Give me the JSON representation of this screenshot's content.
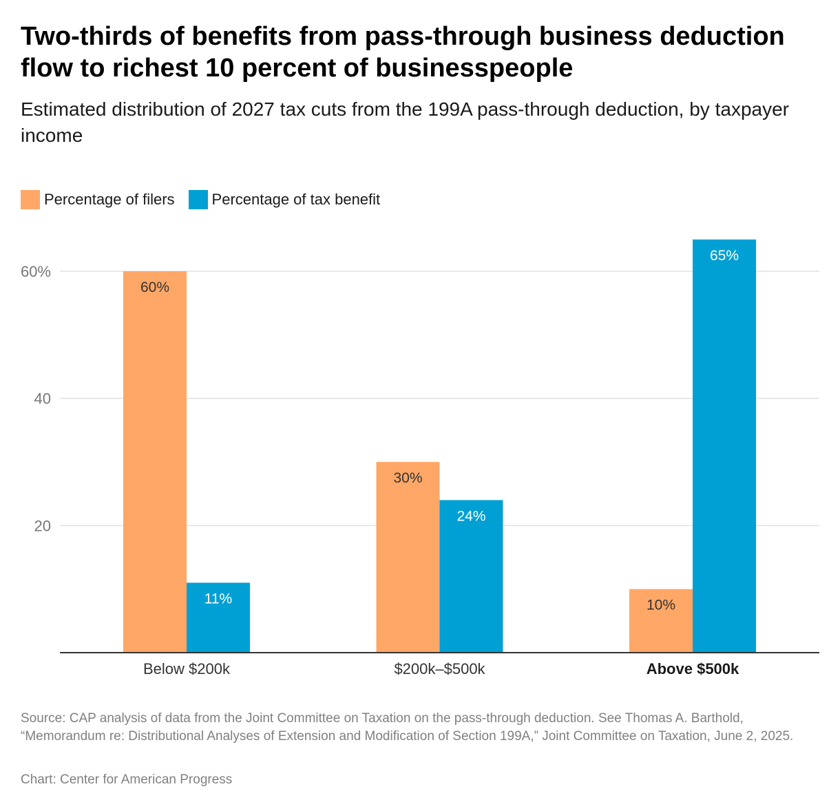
{
  "title": "Two-thirds of benefits from pass-through business deduction flow to richest 10 percent of businesspeople",
  "subtitle": "Estimated distribution of 2027 tax cuts from the 199A pass-through deduction, by taxpayer income",
  "legend": {
    "filers_label": "Percentage of filers",
    "benefit_label": "Percentage of tax benefit"
  },
  "colors": {
    "filers": "#ffa767",
    "benefit": "#00a0d4",
    "grid": "#e0e0e0",
    "axis": "#333333"
  },
  "footer": {
    "source": "Source: CAP analysis of data from the Joint Committee on Taxation on the pass-through deduction. See Thomas A. Barthold, “Memorandum re: Distributional Analyses of Extension and Modification of Section 199A,” Joint Committee on Taxation, June 2, 2025.",
    "credit": "Chart: Center for American Progress"
  },
  "chart_data": {
    "type": "bar",
    "categories": [
      "Below $200k",
      "$200k–$500k",
      "Above $500k"
    ],
    "highlighted_category": "Above $500k",
    "series": [
      {
        "name": "Percentage of filers",
        "values": [
          60,
          30,
          10
        ],
        "labels": [
          "60%",
          "30%",
          "10%"
        ]
      },
      {
        "name": "Percentage of tax benefit",
        "values": [
          11,
          24,
          65
        ],
        "labels": [
          "11%",
          "24%",
          "65%"
        ]
      }
    ],
    "yticks": [
      {
        "value": 20,
        "label": "20"
      },
      {
        "value": 40,
        "label": "40"
      },
      {
        "value": 60,
        "label": "60%"
      }
    ],
    "ylim": [
      0,
      70
    ],
    "grid": true,
    "legend_position": "top-left"
  }
}
